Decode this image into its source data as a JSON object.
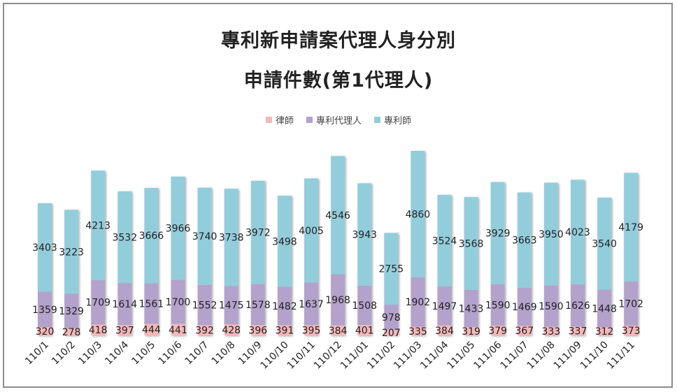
{
  "chart_data": {
    "type": "bar",
    "stacked": true,
    "title_line1": "專利新申請案代理人身分別",
    "title_line2": "申請件數(第1代理人)",
    "legend_position": "top",
    "grid": false,
    "categories": [
      "110/1",
      "110/2",
      "110/3",
      "110/4",
      "110/5",
      "110/6",
      "110/7",
      "110/8",
      "110/9",
      "110/10",
      "110/11",
      "110/12",
      "111/01",
      "111/02",
      "111/03",
      "111/04",
      "111/05",
      "111/06",
      "111/07",
      "111/08",
      "111/09",
      "111/10",
      "111/11"
    ],
    "series": [
      {
        "name": "律師",
        "color": "#f4b8b8",
        "values": [
          320,
          278,
          418,
          397,
          444,
          441,
          392,
          428,
          396,
          391,
          395,
          384,
          401,
          207,
          335,
          384,
          319,
          379,
          367,
          333,
          337,
          312,
          373
        ]
      },
      {
        "name": "專利代理人",
        "color": "#b3a2cb",
        "values": [
          1359,
          1329,
          1709,
          1614,
          1561,
          1700,
          1552,
          1475,
          1578,
          1482,
          1637,
          1968,
          1508,
          978,
          1902,
          1497,
          1433,
          1590,
          1469,
          1590,
          1626,
          1448,
          1702
        ]
      },
      {
        "name": "專利師",
        "color": "#92cddc",
        "values": [
          3403,
          3223,
          4213,
          3532,
          3666,
          3966,
          3740,
          3738,
          3972,
          3498,
          4005,
          4546,
          3943,
          2755,
          4860,
          3524,
          3568,
          3929,
          3663,
          3950,
          4023,
          3540,
          4179
        ]
      }
    ]
  }
}
